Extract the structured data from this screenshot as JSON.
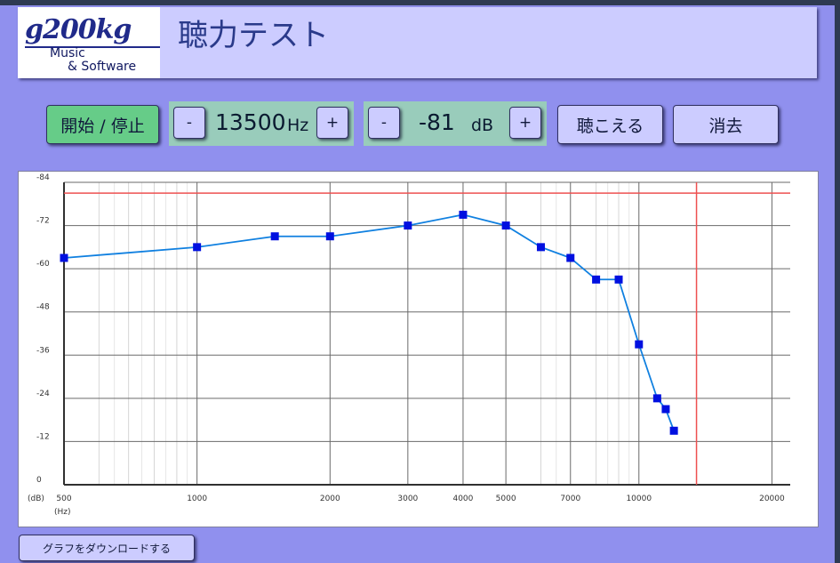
{
  "header": {
    "logo_main": "g200kg",
    "logo_sub1": "Music",
    "logo_sub2": "& Software",
    "title": "聴力テスト"
  },
  "controls": {
    "start_stop_label": "開始 / 停止",
    "freq_minus": "-",
    "freq_value": "13500",
    "freq_unit": "Hz",
    "freq_plus": "+",
    "level_minus": "-",
    "level_value": "-81",
    "level_unit": "dB",
    "level_plus": "+",
    "hear_label": "聴こえる",
    "clear_label": "消去"
  },
  "download_label": "グラフをダウンロードする",
  "colors": {
    "background": "#9090ee",
    "panel": "#ccccff",
    "start_button": "#66cc88",
    "readout_panel": "#99ccbb",
    "series": "#1080e0",
    "marker": "#0010e0",
    "cursor": "#ee5050"
  },
  "chart_data": {
    "type": "line",
    "x_scale": "log",
    "xlim": [
      500,
      22000
    ],
    "ylim": [
      0,
      -84
    ],
    "x_ticks": [
      500,
      1000,
      2000,
      3000,
      4000,
      5000,
      7000,
      10000,
      20000
    ],
    "x_tick_labels": [
      "500",
      "1000",
      "2000",
      "3000",
      "4000",
      "5000",
      "7000",
      "10000",
      "20000"
    ],
    "y_ticks": [
      0,
      -12,
      -24,
      -36,
      -48,
      -60,
      -72,
      -84
    ],
    "y_tick_labels": [
      "0",
      "-12",
      "-24",
      "-36",
      "-48",
      "-60",
      "-72",
      "-84"
    ],
    "y_unit_label": "(dB)",
    "x_unit_label": "(Hz)",
    "grid": true,
    "series": [
      {
        "x": [
          500,
          1000,
          1500,
          2000,
          3000,
          4000,
          5000,
          6000,
          7000,
          8000,
          9000,
          10000,
          11000,
          11500,
          12000
        ],
        "y": [
          -63,
          -66,
          -69,
          -69,
          -72,
          -75,
          -72,
          -66,
          -63,
          -57,
          -57,
          -39,
          -24,
          -21,
          -15
        ]
      }
    ],
    "cursor": {
      "x": 13500,
      "y": -81
    }
  }
}
